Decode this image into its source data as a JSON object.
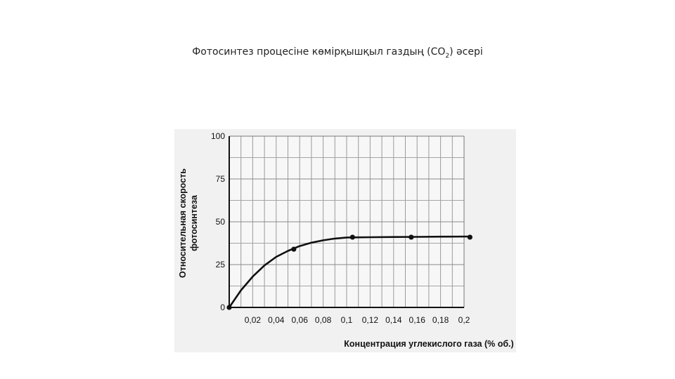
{
  "slide": {
    "title_main": "Фотосинтез процесіне көмірқышқыл газдың (CO",
    "title_sub": "2",
    "title_end": ") әсері"
  },
  "chart_data": {
    "type": "line",
    "xlabel": "Концентрация углекислого газа (% об.)",
    "ylabel_line1": "Относительная скорость",
    "ylabel_line2": "фотосинтеза",
    "xlim": [
      0,
      0.2
    ],
    "ylim": [
      0,
      100
    ],
    "x_ticks": [
      0.02,
      0.04,
      0.06,
      0.08,
      0.1,
      0.12,
      0.14,
      0.16,
      0.18,
      0.2
    ],
    "x_tick_labels": [
      "0,02",
      "0,04",
      "0,06",
      "0,08",
      "0,1",
      "0,12",
      "0,14",
      "0,16",
      "0,18",
      "0,2"
    ],
    "y_ticks": [
      0,
      25,
      50,
      75,
      100
    ],
    "y_tick_labels": [
      "0",
      "25",
      "50",
      "75",
      "100"
    ],
    "grid": true,
    "series": [
      {
        "x": [
          0,
          0.055,
          0.105,
          0.155,
          0.205
        ],
        "y": [
          0,
          34,
          41,
          41,
          41
        ],
        "curve_x": [
          0,
          0.01,
          0.02,
          0.03,
          0.04,
          0.05,
          0.06,
          0.07,
          0.08,
          0.09,
          0.1,
          0.12,
          0.14,
          0.16,
          0.18,
          0.205
        ],
        "curve_y": [
          0,
          10,
          18,
          24.5,
          29.5,
          33,
          35.8,
          37.8,
          39.2,
          40.2,
          40.8,
          41,
          41.1,
          41.2,
          41.3,
          41.4
        ]
      }
    ]
  }
}
